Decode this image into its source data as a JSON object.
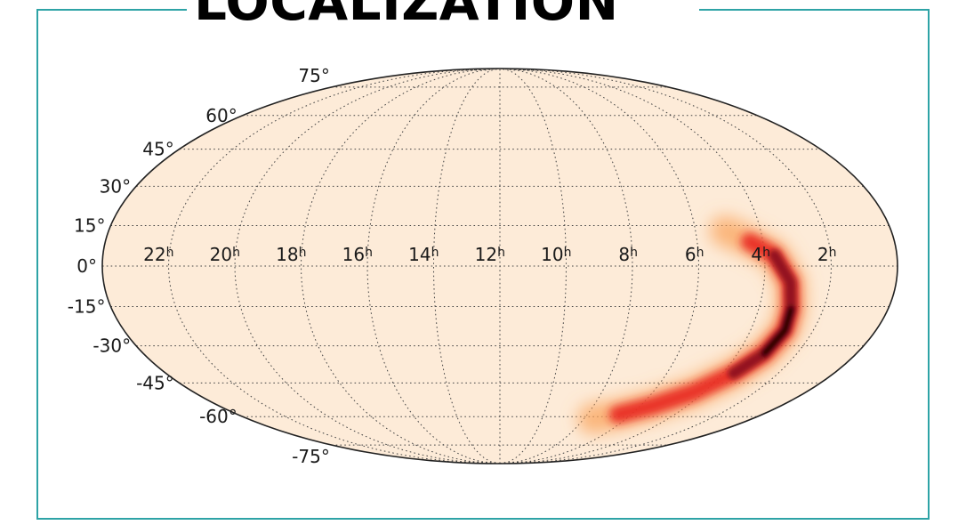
{
  "slide": {
    "title": "LOCALIZATION"
  },
  "skymap": {
    "projection": "Mollweide",
    "background_color": "#fdebd8",
    "outline_color": "#222222",
    "grid_style": "dotted",
    "ra_labels": [
      "22",
      "20",
      "18",
      "16",
      "14",
      "12",
      "10",
      "8",
      "6",
      "4",
      "2"
    ],
    "ra_unit": "h",
    "dec_labels": [
      "75°",
      "60°",
      "45°",
      "30°",
      "15°",
      "0°",
      "-15°",
      "-30°",
      "-45°",
      "-60°",
      "-75°"
    ],
    "probability_colormap": [
      "#fdebd8",
      "#f9a35b",
      "#e8231e",
      "#8a0d1c",
      "#120305"
    ]
  }
}
